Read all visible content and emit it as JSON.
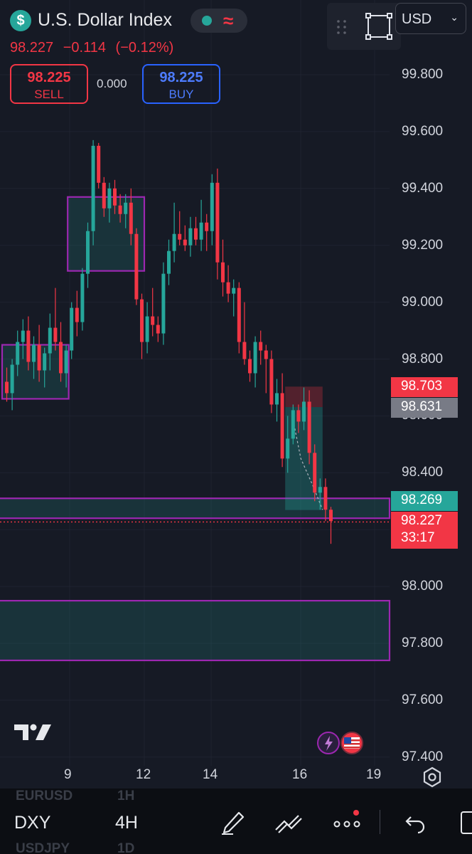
{
  "header": {
    "symbol_icon": "dollar-icon",
    "symbol_name": "U.S. Dollar Index",
    "last_price": "98.227",
    "change": "−0.114",
    "change_pct": "(−0.12%)",
    "sell": {
      "price": "98.225",
      "label": "SELL"
    },
    "buy": {
      "price": "98.225",
      "label": "BUY"
    },
    "spread": "0.000",
    "currency": "USD"
  },
  "price_axis": {
    "labels": [
      "99.800",
      "99.600",
      "99.400",
      "99.200",
      "99.000",
      "98.800",
      "98.600",
      "98.400",
      "98.200",
      "98.000",
      "97.800",
      "97.600",
      "97.400"
    ],
    "values": [
      99.8,
      99.6,
      99.4,
      99.2,
      99.0,
      98.8,
      98.6,
      98.4,
      98.2,
      98.0,
      97.8,
      97.6,
      97.4
    ]
  },
  "price_tags": [
    {
      "name": "stop-tag",
      "text": "98.703",
      "color": "#f23645"
    },
    {
      "name": "entry-tag",
      "text": "98.631",
      "color": "#787b86"
    },
    {
      "name": "target-tag",
      "text": "98.269",
      "color": "#26a69a"
    },
    {
      "name": "last-price-tag",
      "text": "98.227",
      "sub": "33:17",
      "color": "#f23645"
    }
  ],
  "time_axis": {
    "labels": [
      "9",
      "12",
      "14",
      "16",
      "19"
    ]
  },
  "colors": {
    "up": "#26a69a",
    "down": "#f23645",
    "zone": "#9c27b0",
    "bg": "#161a25"
  },
  "bottom_bar": {
    "ghost_above": [
      "EURUSD",
      "1H"
    ],
    "symbol": "DXY",
    "interval": "4H",
    "ghost_below": [
      "USDJPY",
      "1D"
    ],
    "icons": [
      "pen-icon",
      "drawing-tools-icon",
      "more-icon",
      "undo-icon"
    ]
  },
  "chart_data": {
    "type": "candlestick",
    "symbol": "DXY",
    "interval": "4H",
    "x_ticks": [
      "9",
      "12",
      "14",
      "16",
      "19"
    ],
    "ylim": [
      97.4,
      99.85
    ],
    "candles": [
      [
        98.72,
        98.77,
        98.65,
        98.68
      ],
      [
        98.68,
        98.8,
        98.62,
        98.78
      ],
      [
        98.78,
        98.9,
        98.74,
        98.86
      ],
      [
        98.86,
        98.94,
        98.8,
        98.9
      ],
      [
        98.9,
        98.95,
        98.76,
        98.79
      ],
      [
        98.79,
        98.88,
        98.73,
        98.85
      ],
      [
        98.85,
        98.92,
        98.72,
        98.76
      ],
      [
        98.76,
        98.84,
        98.7,
        98.82
      ],
      [
        98.82,
        98.96,
        98.76,
        98.91
      ],
      [
        98.91,
        99.05,
        98.83,
        98.86
      ],
      [
        98.86,
        98.93,
        98.72,
        98.75
      ],
      [
        98.75,
        98.85,
        98.7,
        98.83
      ],
      [
        98.83,
        99.0,
        98.8,
        98.98
      ],
      [
        98.98,
        99.04,
        98.88,
        98.93
      ],
      [
        98.93,
        99.12,
        98.9,
        99.1
      ],
      [
        99.1,
        99.28,
        99.05,
        99.25
      ],
      [
        99.25,
        99.57,
        99.2,
        99.55
      ],
      [
        99.55,
        99.56,
        99.4,
        99.42
      ],
      [
        99.42,
        99.44,
        99.3,
        99.33
      ],
      [
        99.33,
        99.42,
        99.28,
        99.4
      ],
      [
        99.4,
        99.43,
        99.31,
        99.34
      ],
      [
        99.34,
        99.38,
        99.28,
        99.31
      ],
      [
        99.31,
        99.38,
        99.26,
        99.35
      ],
      [
        99.35,
        99.4,
        99.2,
        99.24
      ],
      [
        99.24,
        99.26,
        98.99,
        99.01
      ],
      [
        99.01,
        99.03,
        98.8,
        98.86
      ],
      [
        98.86,
        99.0,
        98.82,
        98.95
      ],
      [
        98.95,
        99.05,
        98.88,
        98.92
      ],
      [
        98.92,
        98.95,
        98.86,
        98.89
      ],
      [
        98.89,
        99.14,
        98.85,
        99.1
      ],
      [
        99.1,
        99.22,
        99.06,
        99.18
      ],
      [
        99.18,
        99.35,
        99.14,
        99.24
      ],
      [
        99.24,
        99.32,
        99.2,
        99.22
      ],
      [
        99.22,
        99.27,
        99.18,
        99.2
      ],
      [
        99.2,
        99.3,
        99.16,
        99.26
      ],
      [
        99.26,
        99.3,
        99.2,
        99.22
      ],
      [
        99.22,
        99.36,
        99.18,
        99.28
      ],
      [
        99.28,
        99.31,
        99.18,
        99.25
      ],
      [
        99.25,
        99.45,
        99.2,
        99.42
      ],
      [
        99.42,
        99.47,
        99.08,
        99.14
      ],
      [
        99.14,
        99.22,
        99.02,
        99.07
      ],
      [
        99.07,
        99.13,
        99.0,
        99.03
      ],
      [
        99.03,
        99.08,
        98.95,
        99.05
      ],
      [
        99.05,
        99.07,
        98.82,
        98.86
      ],
      [
        98.86,
        99.0,
        98.78,
        98.8
      ],
      [
        98.8,
        98.83,
        98.72,
        98.75
      ],
      [
        98.75,
        98.88,
        98.7,
        98.86
      ],
      [
        98.86,
        98.9,
        98.78,
        98.83
      ],
      [
        98.83,
        98.85,
        98.68,
        98.8
      ],
      [
        98.8,
        98.83,
        98.61,
        98.64
      ],
      [
        98.64,
        98.73,
        98.58,
        98.68
      ],
      [
        98.68,
        98.75,
        98.42,
        98.45
      ],
      [
        98.45,
        98.6,
        98.4,
        98.52
      ],
      [
        98.52,
        98.64,
        98.5,
        98.62
      ],
      [
        98.62,
        98.64,
        98.54,
        98.58
      ],
      [
        98.58,
        98.7,
        98.55,
        98.65
      ],
      [
        98.65,
        98.69,
        98.43,
        98.47
      ],
      [
        98.47,
        98.5,
        98.3,
        98.33
      ],
      [
        98.33,
        98.38,
        98.27,
        98.35
      ],
      [
        98.35,
        98.38,
        98.23,
        98.27
      ],
      [
        98.27,
        98.28,
        98.15,
        98.23
      ]
    ],
    "zones": [
      {
        "from_candle": 0,
        "to_candle": 11,
        "low": 98.66,
        "high": 98.85
      },
      {
        "from_candle": 12,
        "to_candle": 25,
        "low": 99.11,
        "high": 99.37
      },
      {
        "from_candle": 0,
        "to_candle": 61,
        "low": 98.24,
        "high": 98.31
      },
      {
        "from_candle": 0,
        "to_candle": 61,
        "low": 97.74,
        "high": 97.95
      }
    ],
    "position": {
      "from_candle": 52,
      "to_candle": 58,
      "stop": 98.703,
      "entry": 98.631,
      "target": 98.269
    },
    "last_price": 98.227
  }
}
